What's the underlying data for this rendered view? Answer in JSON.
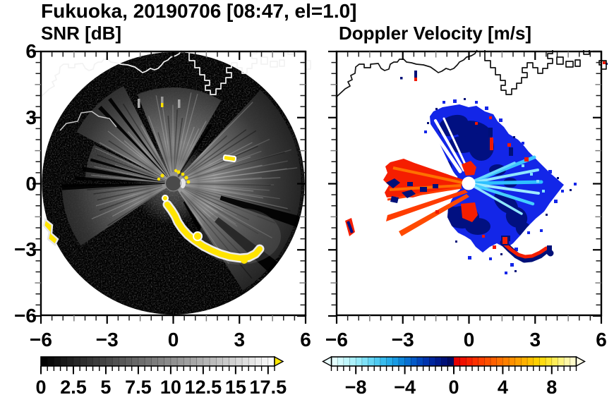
{
  "header": {
    "title": "Fukuoka, 20190706 [08:47, el=1.0]"
  },
  "panels": {
    "snr": {
      "title": "SNR [dB]"
    },
    "doppler": {
      "title": "Doppler Velocity [m/s]"
    }
  },
  "chart_data": [
    {
      "type": "heatmap",
      "subtype": "radar_ppi_scan",
      "title": "SNR [dB]",
      "xlim": [
        -6,
        6
      ],
      "ylim": [
        -6,
        6
      ],
      "xtick_values": [
        -6,
        -3,
        0,
        3,
        6
      ],
      "xtick_labels": [
        "−6",
        "−3",
        "0",
        "3",
        "6"
      ],
      "ytick_values": [
        6,
        3,
        0,
        -3,
        -6
      ],
      "ytick_labels": [
        "6",
        "3",
        "0",
        "−3",
        "−6"
      ],
      "minor_tick_interval": 0.5,
      "grid": false,
      "scan_radius_km": 6,
      "background_inside_scan": "#000000",
      "features": [
        "black circular 6-km PPI scan centered at radar (0,0)",
        "bright gray echo fans toward NW, N, E-SE and WSW with radial streak texture",
        "narrow black shadow rays inside fans",
        "yellow high-SNR clutter arc curving from just south of center toward the SE",
        "isolated yellow clutter patch at far west edge and small dash NE of center",
        "white coastline of Hakata Bay with harbor structures drawn across the north",
        "small dark-gray disk at radar position"
      ],
      "colorbar": {
        "units": "dB",
        "range": [
          0,
          18
        ],
        "block_step": 0.5,
        "tick_interval": 0.5,
        "major_tick_interval": 2.5,
        "labels": [
          "0",
          "2.5",
          "5",
          "7.5",
          "10",
          "12.5",
          "15",
          "17.5"
        ],
        "label_values": [
          0,
          2.5,
          5,
          7.5,
          10,
          12.5,
          15,
          17.5
        ],
        "ramp_start": "#000000",
        "ramp_end": "#FBFBFB",
        "overflow_arrow": {
          "side": "right",
          "color": "#FFE800"
        }
      }
    },
    {
      "type": "heatmap",
      "subtype": "radar_ppi_scan",
      "title": "Doppler Velocity [m/s]",
      "xlim": [
        -6,
        6
      ],
      "ylim": [
        -6,
        6
      ],
      "xtick_values": [
        -6,
        -3,
        0,
        3,
        6
      ],
      "xtick_labels": [
        "−6",
        "−3",
        "0",
        "3",
        "6"
      ],
      "ytick_values": [
        6,
        3,
        0,
        -3,
        -6
      ],
      "ytick_labels": [
        "6",
        "3",
        "0",
        "−3",
        "−6"
      ],
      "minor_tick_interval": 0.5,
      "grid": false,
      "features": [
        "white background, echoes only where signal present",
        "large blue (negative, approaching) velocity fan north and east of radar with dark-navy mottling",
        "light cyan low-magnitude streaks radiating east of radar",
        "thin white no-data wedges in the NW sector",
        "red/orange (positive, receding) wedge west of radar with navy patches at its far end",
        "thin red beams toward WSW and isolated red/navy patch at far west",
        "red-and-navy clutter arc SE of radar",
        "black coastline of Hakata Bay with harbor structures drawn across the north",
        "small white disk at radar position"
      ],
      "colorbar": {
        "units": "m/s",
        "range": [
          -10,
          10
        ],
        "block_step": 0.5,
        "tick_interval": 0.5,
        "major_tick_interval": 4,
        "labels": [
          "−8",
          "−4",
          "0",
          "4",
          "8"
        ],
        "label_values": [
          -8,
          -4,
          0,
          4,
          8
        ],
        "block_colors": [
          "#E4FFFF",
          "#D2FBFE",
          "#C0F7FD",
          "#ACF1FC",
          "#96EAFA",
          "#7EE1F8",
          "#66D6F5",
          "#4ECAF2",
          "#38BCEE",
          "#26ACE9",
          "#189AE3",
          "#0E86DB",
          "#0870D2",
          "#045AC8",
          "#0246BC",
          "#0134AE",
          "#00269E",
          "#001A8C",
          "#001078",
          "#000A62",
          "#E60000",
          "#F01000",
          "#F82000",
          "#FE3000",
          "#FF4000",
          "#FF5000",
          "#FF6000",
          "#FF7000",
          "#FF8000",
          "#FF9000",
          "#FFA000",
          "#FFB000",
          "#FFC000",
          "#FFD000",
          "#FFDC10",
          "#FFE630",
          "#FFEE58",
          "#FFF480",
          "#FFF8A8",
          "#FFFBCA"
        ],
        "overflow_arrow_left": {
          "side": "left",
          "color": "#EAFFFF"
        },
        "overflow_arrow_right": {
          "side": "right",
          "color": "#FFFDE6"
        }
      }
    }
  ]
}
